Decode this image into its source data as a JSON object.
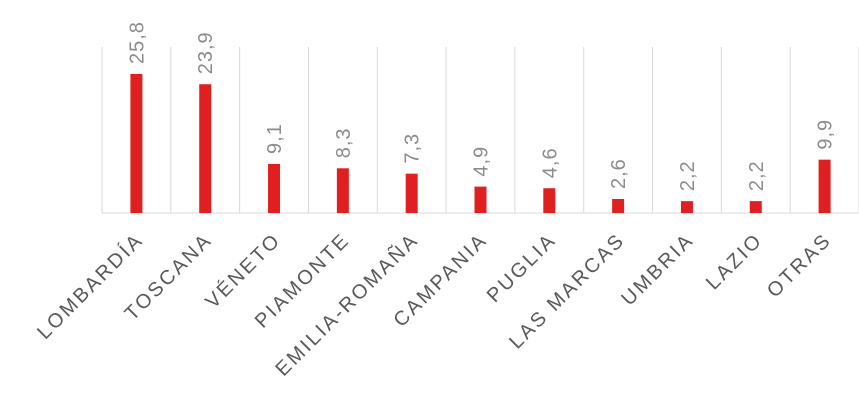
{
  "chart_data": {
    "type": "bar",
    "categories": [
      "LOMBARDÍA",
      "TOSCANA",
      "VÉNETO",
      "PIAMONTE",
      "EMILIA-ROMAÑA",
      "CAMPANIA",
      "PUGLIA",
      "LAS MARCAS",
      "UMBRIA",
      "LAZIO",
      "OTRAS"
    ],
    "values": [
      25.8,
      23.9,
      9.1,
      8.3,
      7.3,
      4.9,
      4.6,
      2.6,
      2.2,
      2.2,
      9.9
    ],
    "value_labels": [
      "25,8",
      "23,9",
      "9,1",
      "8,3",
      "7,3",
      "4,9",
      "4,6",
      "2,6",
      "2,2",
      "2,2",
      "9,9"
    ],
    "color": "#e02020"
  }
}
